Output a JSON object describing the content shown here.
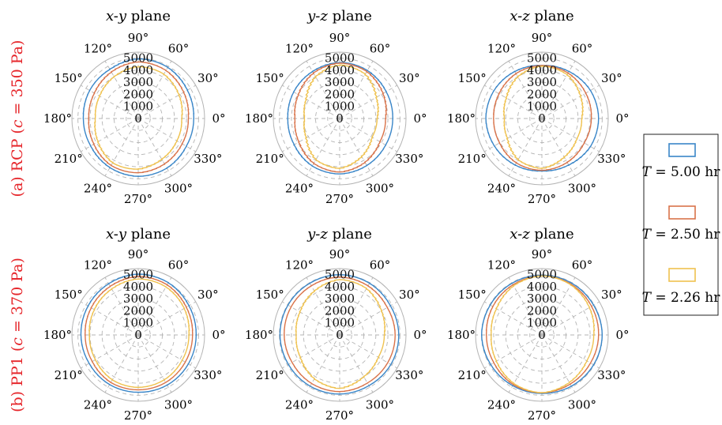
{
  "figure": {
    "row_labels": [
      {
        "prefix": "(a)  RCP  (",
        "var": "c",
        "suffix": " = 350 Pa)"
      },
      {
        "prefix": "(b)  PP1  (",
        "var": "c",
        "suffix": " = 370 Pa)"
      }
    ]
  },
  "legend": {
    "items": [
      {
        "var": "T",
        "text": " = 5.00 hr",
        "color": "#3a86c8"
      },
      {
        "var": "T",
        "text": " = 2.50 hr",
        "color": "#d9734a"
      },
      {
        "var": "T",
        "text": " = 2.26 hr",
        "color": "#efc24f"
      }
    ]
  },
  "colors": {
    "grid": "#b4b4b4",
    "row_label": "#e6262b"
  },
  "chart_data": [
    {
      "type": "polar",
      "title": {
        "var": "x-y",
        "text": " plane"
      },
      "angle_ticks": [
        "0°",
        "30°",
        "60°",
        "90°",
        "120°",
        "150°",
        "180°",
        "210°",
        "240°",
        "270°",
        "300°",
        "330°"
      ],
      "radial_ticks": [
        "0",
        "1000",
        "2000",
        "3000",
        "4000",
        "5000"
      ],
      "rlim": [
        0,
        5500
      ],
      "series": [
        {
          "name": "T = 5.00 hr",
          "radius_by_angle_30deg": [
            4600,
            4700,
            4900,
            4950,
            4700,
            4650,
            4550,
            4550,
            4700,
            4800,
            4750,
            4600
          ]
        },
        {
          "name": "T = 2.50 hr",
          "radius_by_angle_30deg": [
            4150,
            4350,
            4600,
            4700,
            4450,
            4200,
            4100,
            4250,
            4500,
            4500,
            4350,
            4200
          ]
        },
        {
          "name": "T = 2.26 hr",
          "radius_by_angle_30deg": [
            3600,
            3900,
            4250,
            4300,
            4000,
            3700,
            3550,
            3850,
            4250,
            4200,
            3900,
            3700
          ]
        }
      ]
    },
    {
      "type": "polar",
      "title": {
        "var": "y-z",
        "text": " plane"
      },
      "angle_ticks": [
        "0°",
        "30°",
        "60°",
        "90°",
        "120°",
        "150°",
        "180°",
        "210°",
        "240°",
        "270°",
        "300°",
        "330°"
      ],
      "radial_ticks": [
        "0",
        "1000",
        "2000",
        "3000",
        "4000",
        "5000"
      ],
      "rlim": [
        0,
        5500
      ],
      "series": [
        {
          "name": "T = 5.00 hr",
          "radius_by_angle_30deg": [
            4400,
            4450,
            4600,
            4650,
            4500,
            4400,
            4300,
            4350,
            4550,
            4600,
            4500,
            4400
          ]
        },
        {
          "name": "T = 2.50 hr",
          "radius_by_angle_30deg": [
            3800,
            4150,
            4500,
            4600,
            4350,
            3950,
            3700,
            3900,
            4300,
            4450,
            4200,
            3850
          ]
        },
        {
          "name": "T = 2.26 hr",
          "radius_by_angle_30deg": [
            3100,
            3500,
            4250,
            4450,
            4000,
            3200,
            2900,
            3200,
            3950,
            4150,
            3650,
            3100
          ]
        }
      ]
    },
    {
      "type": "polar",
      "title": {
        "var": "x-z",
        "text": " plane"
      },
      "angle_ticks": [
        "0°",
        "30°",
        "60°",
        "90°",
        "120°",
        "150°",
        "180°",
        "210°",
        "240°",
        "270°",
        "300°",
        "330°"
      ],
      "radial_ticks": [
        "0",
        "1000",
        "2000",
        "3000",
        "4000",
        "5000"
      ],
      "rlim": [
        0,
        5500
      ],
      "series": [
        {
          "name": "T = 5.00 hr",
          "radius_by_angle_30deg": [
            4700,
            4650,
            4500,
            4400,
            4500,
            4600,
            4650,
            4550,
            4450,
            4350,
            4450,
            4650
          ]
        },
        {
          "name": "T = 2.50 hr",
          "radius_by_angle_30deg": [
            4100,
            4200,
            4350,
            4400,
            4300,
            4100,
            4000,
            4050,
            4250,
            4300,
            4200,
            4050
          ]
        },
        {
          "name": "T = 2.26 hr",
          "radius_by_angle_30deg": [
            3300,
            3700,
            4200,
            4350,
            4000,
            3400,
            3100,
            3300,
            3950,
            4150,
            3700,
            3350
          ]
        }
      ]
    },
    {
      "type": "polar",
      "title": {
        "var": "x-y",
        "text": " plane"
      },
      "angle_ticks": [
        "0°",
        "30°",
        "60°",
        "90°",
        "120°",
        "150°",
        "180°",
        "210°",
        "240°",
        "270°",
        "300°",
        "330°"
      ],
      "radial_ticks": [
        "0",
        "1000",
        "2000",
        "3000",
        "4000",
        "5000"
      ],
      "rlim": [
        0,
        5500
      ],
      "series": [
        {
          "name": "T = 5.00 hr",
          "radius_by_angle_30deg": [
            4800,
            4850,
            5000,
            5050,
            4900,
            4800,
            4750,
            4700,
            4750,
            4750,
            4800,
            4800
          ]
        },
        {
          "name": "T = 2.50 hr",
          "radius_by_angle_30deg": [
            4500,
            4600,
            4800,
            4850,
            4650,
            4500,
            4400,
            4400,
            4550,
            4550,
            4550,
            4500
          ]
        },
        {
          "name": "T = 2.26 hr",
          "radius_by_angle_30deg": [
            4200,
            4400,
            4600,
            4650,
            4400,
            4200,
            4050,
            4100,
            4300,
            4350,
            4300,
            4200
          ]
        }
      ]
    },
    {
      "type": "polar",
      "title": {
        "var": "y-z",
        "text": " plane"
      },
      "angle_ticks": [
        "0°",
        "30°",
        "60°",
        "90°",
        "120°",
        "150°",
        "180°",
        "210°",
        "240°",
        "270°",
        "300°",
        "330°"
      ],
      "radial_ticks": [
        "0",
        "1000",
        "2000",
        "3000",
        "4000",
        "5000"
      ],
      "rlim": [
        0,
        5500
      ],
      "series": [
        {
          "name": "T = 5.00 hr",
          "radius_by_angle_30deg": [
            4900,
            4850,
            4950,
            5000,
            4950,
            4950,
            4950,
            4900,
            4900,
            4900,
            4850,
            4900
          ]
        },
        {
          "name": "T = 2.50 hr",
          "radius_by_angle_30deg": [
            4600,
            4550,
            4700,
            4800,
            4700,
            4650,
            4600,
            4550,
            4650,
            4700,
            4600,
            4600
          ]
        },
        {
          "name": "T = 2.26 hr",
          "radius_by_angle_30deg": [
            3700,
            4000,
            4450,
            4600,
            4200,
            3800,
            3600,
            3750,
            4200,
            4450,
            4000,
            3700
          ]
        }
      ]
    },
    {
      "type": "polar",
      "title": {
        "var": "x-z",
        "text": " plane"
      },
      "angle_ticks": [
        "0°",
        "30°",
        "60°",
        "90°",
        "120°",
        "150°",
        "180°",
        "210°",
        "240°",
        "270°",
        "300°",
        "330°"
      ],
      "radial_ticks": [
        "0",
        "1000",
        "2000",
        "3000",
        "4000",
        "5000"
      ],
      "rlim": [
        0,
        5500
      ],
      "series": [
        {
          "name": "T = 5.00 hr",
          "radius_by_angle_30deg": [
            5000,
            4950,
            4950,
            4950,
            4950,
            4950,
            5000,
            4900,
            4850,
            4850,
            4900,
            4950
          ]
        },
        {
          "name": "T = 2.50 hr",
          "radius_by_angle_30deg": [
            4700,
            4750,
            4850,
            4900,
            4800,
            4700,
            4600,
            4600,
            4750,
            4800,
            4700,
            4650
          ]
        },
        {
          "name": "T = 2.26 hr",
          "radius_by_angle_30deg": [
            4300,
            4550,
            4800,
            4900,
            4700,
            4350,
            4200,
            4350,
            4650,
            4800,
            4550,
            4300
          ]
        }
      ]
    }
  ]
}
